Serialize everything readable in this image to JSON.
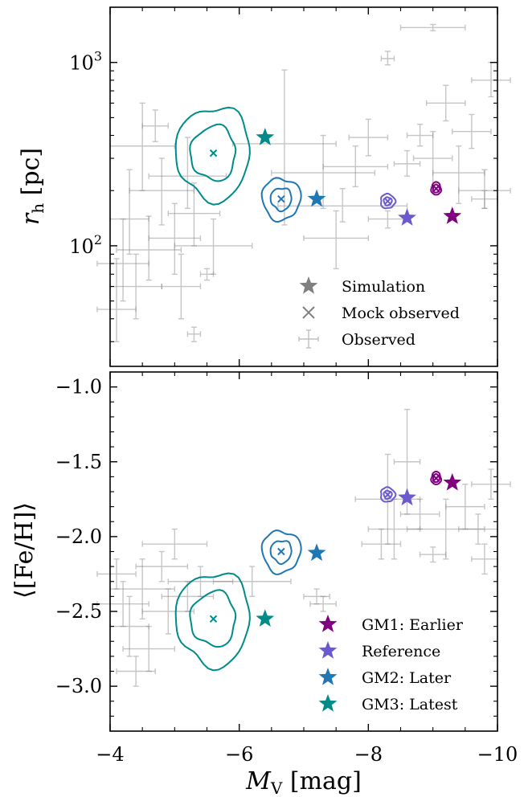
{
  "colors": {
    "gm1": "#800080",
    "reference": "#6a5acd",
    "gm2": "#1f77b4",
    "gm3": "#008b8b",
    "observed": "#808080",
    "simulation_marker": "#808080"
  },
  "chart_data": [
    {
      "type": "scatter",
      "panel": "top",
      "ylabel_main": "r",
      "ylabel_sub": "h",
      "ylabel_unit": " [pc]",
      "yscale": "log",
      "xlim": [
        -4,
        -10
      ],
      "ylim": [
        22,
        2000
      ],
      "ytick_labels": [
        {
          "value": 100,
          "base": "10",
          "exp": "2"
        },
        {
          "value": 1000,
          "base": "10",
          "exp": "3"
        }
      ],
      "legend": {
        "placement": "lower-right",
        "entries": [
          "Simulation",
          "Mock observed",
          "Observed"
        ]
      },
      "simulation": [
        {
          "name": "GM1: Earlier",
          "x": -9.3,
          "y": 145
        },
        {
          "name": "Reference",
          "x": -8.6,
          "y": 142
        },
        {
          "name": "GM2: Later",
          "x": -7.2,
          "y": 180
        },
        {
          "name": "GM3: Latest",
          "x": -6.4,
          "y": 390
        }
      ],
      "mock_observed": [
        {
          "name": "GM1: Earlier",
          "x": -9.05,
          "y": 205
        },
        {
          "name": "Reference",
          "x": -8.3,
          "y": 175
        },
        {
          "name": "GM2: Later",
          "x": -6.65,
          "y": 180
        },
        {
          "name": "GM3: Latest",
          "x": -5.6,
          "y": 320
        }
      ],
      "observed": [
        {
          "x": -4.1,
          "y": 45,
          "xerr": 0.3,
          "yerr_lo": 15,
          "yerr_hi": 40
        },
        {
          "x": -4.2,
          "y": 80,
          "xerr": 0.4,
          "yerr_lo": 30,
          "yerr_hi": 60
        },
        {
          "x": -4.3,
          "y": 140,
          "xerr": 0.3,
          "yerr_lo": 50,
          "yerr_hi": 120
        },
        {
          "x": -4.5,
          "y": 350,
          "xerr": 0.5,
          "yerr_lo": 150,
          "yerr_hi": 250
        },
        {
          "x": -4.4,
          "y": 60,
          "xerr": 0.4,
          "yerr_lo": 20,
          "yerr_hi": 30
        },
        {
          "x": -4.7,
          "y": 450,
          "xerr": 0.2,
          "yerr_lo": 80,
          "yerr_hi": 100
        },
        {
          "x": -4.8,
          "y": 200,
          "xerr": 0.5,
          "yerr_lo": 70,
          "yerr_hi": 100
        },
        {
          "x": -5.0,
          "y": 110,
          "xerr": 0.4,
          "yerr_lo": 40,
          "yerr_hi": 60
        },
        {
          "x": -5.1,
          "y": 60,
          "xerr": 0.3,
          "yerr_lo": 20,
          "yerr_hi": 30
        },
        {
          "x": -5.3,
          "y": 150,
          "xerr": 0.4,
          "yerr_lo": 50,
          "yerr_hi": 70
        },
        {
          "x": -5.3,
          "y": 33,
          "xerr": 0.1,
          "yerr_lo": 3,
          "yerr_hi": 3
        },
        {
          "x": -5.5,
          "y": 70,
          "xerr": 0.1,
          "yerr_lo": 5,
          "yerr_hi": 5
        },
        {
          "x": -5.6,
          "y": 100,
          "xerr": 0.6,
          "yerr_lo": 30,
          "yerr_hi": 40
        },
        {
          "x": -4.6,
          "y": 95,
          "xerr": 0.5,
          "yerr_lo": 30,
          "yerr_hi": 50
        },
        {
          "x": -5.2,
          "y": 240,
          "xerr": 0.6,
          "yerr_lo": 80,
          "yerr_hi": 150
        },
        {
          "x": -6.7,
          "y": 360,
          "xerr": 0.8,
          "yerr_lo": 230,
          "yerr_hi": 550
        },
        {
          "x": -7.3,
          "y": 250,
          "xerr": 0.8,
          "yerr_lo": 90,
          "yerr_hi": 150
        },
        {
          "x": -7.5,
          "y": 110,
          "xerr": 0.5,
          "yerr_lo": 35,
          "yerr_hi": 45
        },
        {
          "x": -7.6,
          "y": 165,
          "xerr": 1.0,
          "yerr_lo": 30,
          "yerr_hi": 40
        },
        {
          "x": -7.8,
          "y": 270,
          "xerr": 0.5,
          "yerr_lo": 60,
          "yerr_hi": 80
        },
        {
          "x": -8.0,
          "y": 390,
          "xerr": 0.3,
          "yerr_lo": 80,
          "yerr_hi": 100
        },
        {
          "x": -8.3,
          "y": 1050,
          "xerr": 0.1,
          "yerr_lo": 80,
          "yerr_hi": 100
        },
        {
          "x": -8.3,
          "y": 140,
          "xerr": 0.3,
          "yerr_lo": 15,
          "yerr_hi": 15
        },
        {
          "x": -8.6,
          "y": 280,
          "xerr": 0.2,
          "yerr_lo": 40,
          "yerr_hi": 50
        },
        {
          "x": -8.8,
          "y": 400,
          "xerr": 0.2,
          "yerr_lo": 50,
          "yerr_hi": 60
        },
        {
          "x": -9.0,
          "y": 300,
          "xerr": 0.3,
          "yerr_lo": 90,
          "yerr_hi": 120
        },
        {
          "x": -9.0,
          "y": 1550,
          "xerr": 0.5,
          "yerr_lo": 60,
          "yerr_hi": 60
        },
        {
          "x": -9.2,
          "y": 600,
          "xerr": 0.3,
          "yerr_lo": 120,
          "yerr_hi": 150
        },
        {
          "x": -9.4,
          "y": 250,
          "xerr": 0.4,
          "yerr_lo": 80,
          "yerr_hi": 100
        },
        {
          "x": -9.6,
          "y": 420,
          "xerr": 0.3,
          "yerr_lo": 80,
          "yerr_hi": 100
        },
        {
          "x": -9.8,
          "y": 200,
          "xerr": 0.4,
          "yerr_lo": 40,
          "yerr_hi": 60
        },
        {
          "x": -9.9,
          "y": 800,
          "xerr": 0.3,
          "yerr_lo": 150,
          "yerr_hi": 200
        },
        {
          "x": -9.8,
          "y": 180,
          "xerr": 0.2,
          "yerr_lo": 20,
          "yerr_hi": 20
        }
      ]
    },
    {
      "type": "scatter",
      "panel": "bottom",
      "ylabel": "⟨[Fe/H]⟩",
      "xlabel_main": "M",
      "xlabel_sub": "V",
      "xlabel_unit": " [mag]",
      "xlim": [
        -4,
        -10
      ],
      "ylim": [
        -3.3,
        -0.9
      ],
      "xticks": [
        -4,
        -6,
        -8,
        -10
      ],
      "xtick_labels": [
        "−4",
        "−6",
        "−8",
        "−10"
      ],
      "yticks": [
        -1.0,
        -1.5,
        -2.0,
        -2.5,
        -3.0
      ],
      "ytick_labels": [
        "−1.0",
        "−1.5",
        "−2.0",
        "−2.5",
        "−3.0"
      ],
      "legend": {
        "placement": "lower-right",
        "entries": [
          "GM1: Earlier",
          "Reference",
          "GM2: Later",
          "GM3: Latest"
        ]
      },
      "simulation": [
        {
          "name": "GM1: Earlier",
          "x": -9.3,
          "y": -1.64
        },
        {
          "name": "Reference",
          "x": -8.6,
          "y": -1.74
        },
        {
          "name": "GM2: Later",
          "x": -7.2,
          "y": -2.11
        },
        {
          "name": "GM3: Latest",
          "x": -6.4,
          "y": -2.55
        }
      ],
      "mock_observed": [
        {
          "name": "GM1: Earlier",
          "x": -9.05,
          "y": -1.61
        },
        {
          "name": "Reference",
          "x": -8.3,
          "y": -1.72
        },
        {
          "name": "GM2: Later",
          "x": -6.65,
          "y": -2.1
        },
        {
          "name": "GM3: Latest",
          "x": -5.6,
          "y": -2.55
        }
      ],
      "observed": [
        {
          "x": -4.1,
          "y": -2.25,
          "xerr": 0.3,
          "yerr": 0.1
        },
        {
          "x": -4.2,
          "y": -2.45,
          "xerr": 0.4,
          "yerr": 0.15
        },
        {
          "x": -4.3,
          "y": -2.6,
          "xerr": 0.3,
          "yerr": 0.2
        },
        {
          "x": -4.5,
          "y": -2.35,
          "xerr": 0.5,
          "yerr": 0.2
        },
        {
          "x": -4.6,
          "y": -2.75,
          "xerr": 0.4,
          "yerr": 0.15
        },
        {
          "x": -4.8,
          "y": -2.2,
          "xerr": 0.4,
          "yerr": 0.1
        },
        {
          "x": -5.0,
          "y": -2.05,
          "xerr": 0.5,
          "yerr": 0.1
        },
        {
          "x": -5.2,
          "y": -2.4,
          "xerr": 0.4,
          "yerr": 0.1
        },
        {
          "x": -5.4,
          "y": -2.3,
          "xerr": 0.5,
          "yerr": 0.1
        },
        {
          "x": -4.9,
          "y": -2.5,
          "xerr": 0.4,
          "yerr": 0.15
        },
        {
          "x": -4.4,
          "y": -2.9,
          "xerr": 0.3,
          "yerr": 0.1
        },
        {
          "x": -6.2,
          "y": -2.3,
          "xerr": 0.6,
          "yerr": 0.1
        },
        {
          "x": -7.2,
          "y": -2.4,
          "xerr": 0.2,
          "yerr": 0.05
        },
        {
          "x": -7.3,
          "y": -2.45,
          "xerr": 0.2,
          "yerr": 0.05
        },
        {
          "x": -8.3,
          "y": -1.75,
          "xerr": 0.5,
          "yerr": 0.3
        },
        {
          "x": -8.4,
          "y": -1.95,
          "xerr": 0.4,
          "yerr": 0.2
        },
        {
          "x": -8.6,
          "y": -1.5,
          "xerr": 0.2,
          "yerr": 0.35
        },
        {
          "x": -8.8,
          "y": -1.85,
          "xerr": 0.3,
          "yerr": 0.1
        },
        {
          "x": -9.0,
          "y": -2.12,
          "xerr": 0.2,
          "yerr": 0.05
        },
        {
          "x": -9.2,
          "y": -1.95,
          "xerr": 0.6,
          "yerr": 0.2
        },
        {
          "x": -9.5,
          "y": -1.8,
          "xerr": 0.3,
          "yerr": 0.15
        },
        {
          "x": -9.7,
          "y": -1.95,
          "xerr": 0.3,
          "yerr": 0.1
        },
        {
          "x": -9.9,
          "y": -1.65,
          "xerr": 0.3,
          "yerr": 0.1
        },
        {
          "x": -9.8,
          "y": -2.15,
          "xerr": 0.2,
          "yerr": 0.1
        },
        {
          "x": -8.2,
          "y": -2.05,
          "xerr": 0.3,
          "yerr": 0.1
        }
      ]
    }
  ]
}
